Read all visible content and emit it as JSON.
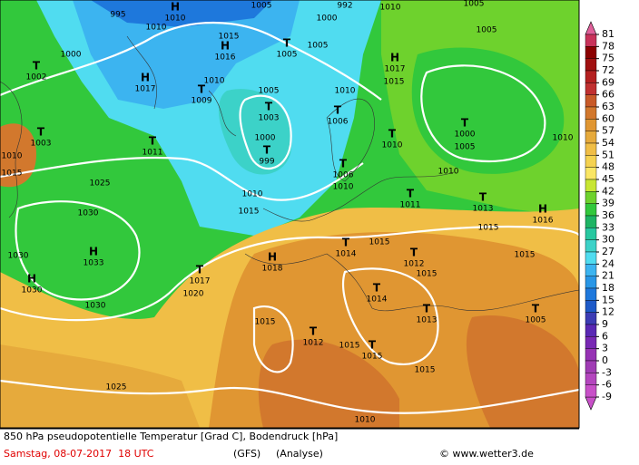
{
  "map": {
    "centers": [
      {
        "kind": "H",
        "pressure": "1010"
      },
      {
        "kind": "H",
        "pressure": "1016"
      },
      {
        "kind": "T",
        "pressure": "1005"
      },
      {
        "kind": "H",
        "pressure": "1017"
      },
      {
        "kind": "T",
        "pressure": "1009"
      },
      {
        "kind": "T",
        "pressure": "1002"
      },
      {
        "kind": "T",
        "pressure": "1003"
      },
      {
        "kind": "T",
        "pressure": "1011"
      },
      {
        "kind": "T",
        "pressure": "1003"
      },
      {
        "kind": "T",
        "pressure": "999"
      },
      {
        "kind": "T",
        "pressure": "1006"
      },
      {
        "kind": "T",
        "pressure": "1010"
      },
      {
        "kind": "T",
        "pressure": "1000"
      },
      {
        "kind": "H",
        "pressure": "1017"
      },
      {
        "kind": "T",
        "pressure": "1006"
      },
      {
        "kind": "H",
        "pressure": "1033"
      },
      {
        "kind": "H",
        "pressure": "1030"
      },
      {
        "kind": "T",
        "pressure": "1017"
      },
      {
        "kind": "H",
        "pressure": "1018"
      },
      {
        "kind": "T",
        "pressure": "1014"
      },
      {
        "kind": "T",
        "pressure": "1012"
      },
      {
        "kind": "T",
        "pressure": "1011"
      },
      {
        "kind": "T",
        "pressure": "1013"
      },
      {
        "kind": "H",
        "pressure": "1016"
      },
      {
        "kind": "T",
        "pressure": "1014"
      },
      {
        "kind": "T",
        "pressure": "1013"
      },
      {
        "kind": "T",
        "pressure": "1012"
      },
      {
        "kind": "T",
        "pressure": "1015"
      },
      {
        "kind": "T",
        "pressure": "1005"
      }
    ],
    "isobar_labels": [
      "995",
      "1005",
      "992",
      "1010",
      "1005",
      "1000",
      "1010",
      "1000",
      "1005",
      "1015",
      "1005",
      "1010",
      "1015",
      "1005",
      "1010",
      "1000",
      "1005",
      "1010",
      "1010",
      "1015",
      "1025",
      "1010",
      "1010",
      "1010",
      "1015",
      "1030",
      "1015",
      "1015",
      "1030",
      "1015",
      "1015",
      "1030",
      "1020",
      "1015",
      "1015",
      "1015",
      "1025",
      "1010"
    ]
  },
  "colorbar": {
    "ticks": [
      81,
      78,
      75,
      72,
      69,
      66,
      63,
      60,
      57,
      54,
      51,
      48,
      45,
      42,
      39,
      36,
      33,
      30,
      27,
      24,
      21,
      18,
      15,
      12,
      9,
      6,
      3,
      0,
      -3,
      -6,
      -9
    ],
    "colors": [
      "#c8325a",
      "#8b0000",
      "#a01010",
      "#b42020",
      "#c03030",
      "#c85a28",
      "#d2782d",
      "#e09632",
      "#e6aa3c",
      "#f0be46",
      "#f5d250",
      "#fae664",
      "#c8e632",
      "#6ed22d",
      "#32c83c",
      "#1eb464",
      "#28c8a0",
      "#3cd2c8",
      "#50dcf0",
      "#3cb4f0",
      "#2896e6",
      "#1e78dc",
      "#1e5ac8",
      "#3c3cb4",
      "#5a28b4",
      "#7828b4",
      "#9632b4",
      "#a03cb4",
      "#b446be",
      "#c850c8"
    ]
  },
  "footer": {
    "description": "850 hPa pseudopotentielle Temperatur [Grad C], Bodendruck [hPa]",
    "date": "Samstag, 08-07-2017  18 UTC",
    "model": "(GFS)",
    "run": "(Analyse)",
    "source": "© www.wetter3.de"
  }
}
